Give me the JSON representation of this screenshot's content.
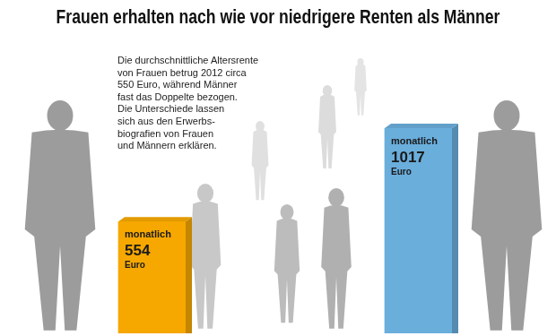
{
  "chart_data": {
    "type": "bar",
    "title": "Frauen erhalten nach wie vor niedrigere Renten als Männer",
    "annotation": [
      "Die durchschnittliche Altersrente",
      "von Frauen betrug 2012 circa",
      "550 Euro, während Männer",
      "fast das Doppelte bezogen.",
      "Die Unterschiede lassen",
      "sich aus den Erwerbs-",
      "biografien von Frauen",
      "und Männern erklären."
    ],
    "categories": [
      null,
      null
    ],
    "values": [
      554,
      1017
    ],
    "value_labels": [
      [
        "monatlich",
        "554",
        "Euro"
      ],
      [
        "monatlich",
        "1017",
        "Euro"
      ]
    ],
    "colors": [
      "#f6a800",
      "#6aaedc"
    ],
    "ylim": [
      0,
      1017
    ],
    "data_labels": true,
    "tick_labels": false,
    "grid": false
  }
}
